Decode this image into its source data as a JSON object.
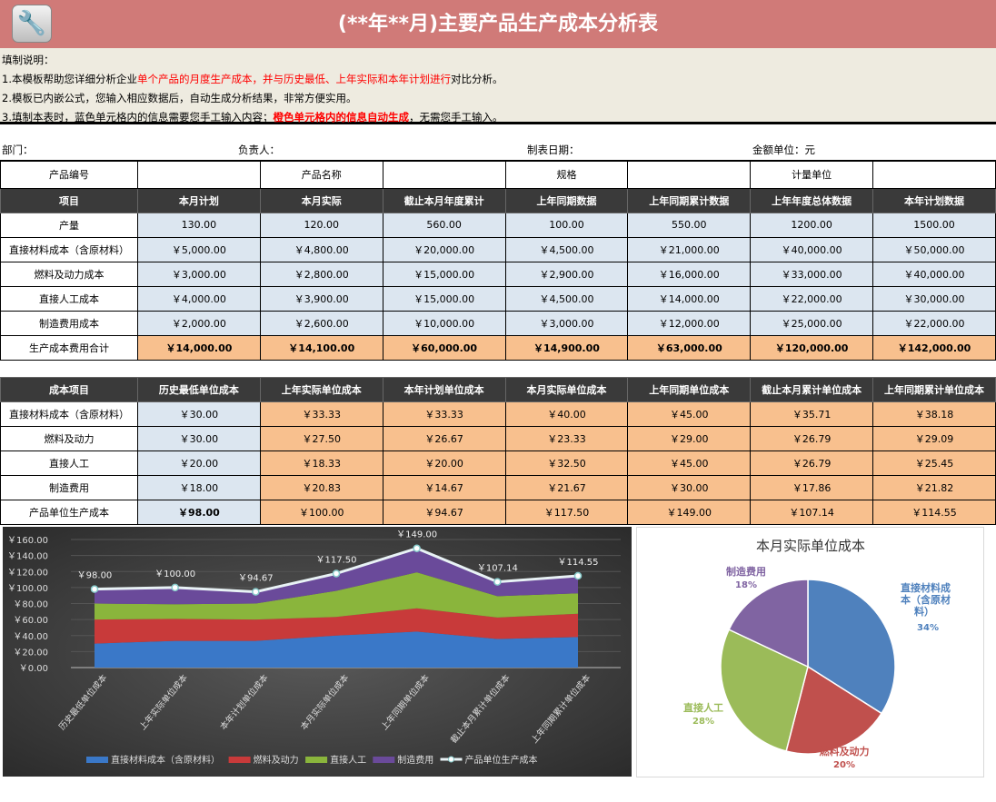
{
  "title": "(**年**月)主要产品生产成本分析表",
  "notes": {
    "heading": "填制说明：",
    "l1a": "1.本模板帮助您详细分析企业",
    "l1b": "单个产品的月度生产成本，并与历史最低、上年实际和本年计划进行",
    "l1c": "对比分析。",
    "l2": "2.模板已内嵌公式，您输入相应数据后，自动生成分析结果，非常方便实用。",
    "l3a": "3.填制本表时，蓝色单元格内的信息需要您手工输入内容；",
    "l3b": "橙色单元格内的信息自动生成",
    "l3c": "，无需您手工输入。"
  },
  "info": {
    "dept": "部门：",
    "owner": "负责人：",
    "date": "制表日期：",
    "unit": "金额单位：元"
  },
  "product_row": [
    "产品编号",
    "",
    "产品名称",
    "",
    "规格",
    "",
    "计量单位",
    ""
  ],
  "table1": {
    "headers": [
      "项目",
      "本月计划",
      "本月实际",
      "截止本月年度累计",
      "上年同期数据",
      "上年同期累计数据",
      "上年年度总体数据",
      "本年计划数据"
    ],
    "rows": [
      [
        "产量",
        "130.00",
        "120.00",
        "560.00",
        "100.00",
        "550.00",
        "1200.00",
        "1500.00"
      ],
      [
        "直接材料成本（含原材料）",
        "￥5,000.00",
        "￥4,800.00",
        "￥20,000.00",
        "￥4,500.00",
        "￥21,000.00",
        "￥40,000.00",
        "￥50,000.00"
      ],
      [
        "燃料及动力成本",
        "￥3,000.00",
        "￥2,800.00",
        "￥15,000.00",
        "￥2,900.00",
        "￥16,000.00",
        "￥33,000.00",
        "￥40,000.00"
      ],
      [
        "直接人工成本",
        "￥4,000.00",
        "￥3,900.00",
        "￥15,000.00",
        "￥4,500.00",
        "￥14,000.00",
        "￥22,000.00",
        "￥30,000.00"
      ],
      [
        "制造费用成本",
        "￥2,000.00",
        "￥2,600.00",
        "￥10,000.00",
        "￥3,000.00",
        "￥12,000.00",
        "￥25,000.00",
        "￥22,000.00"
      ],
      [
        "生产成本费用合计",
        "￥14,000.00",
        "￥14,100.00",
        "￥60,000.00",
        "￥14,900.00",
        "￥63,000.00",
        "￥120,000.00",
        "￥142,000.00"
      ]
    ]
  },
  "table2": {
    "headers": [
      "成本项目",
      "历史最低单位成本",
      "上年实际单位成本",
      "本年计划单位成本",
      "本月实际单位成本",
      "上年同期单位成本",
      "截止本月累计单位成本",
      "上年同期累计单位成本"
    ],
    "rows": [
      [
        "直接材料成本（含原材料）",
        "￥30.00",
        "￥33.33",
        "￥33.33",
        "￥40.00",
        "￥45.00",
        "￥35.71",
        "￥38.18"
      ],
      [
        "燃料及动力",
        "￥30.00",
        "￥27.50",
        "￥26.67",
        "￥23.33",
        "￥29.00",
        "￥26.79",
        "￥29.09"
      ],
      [
        "直接人工",
        "￥20.00",
        "￥18.33",
        "￥20.00",
        "￥32.50",
        "￥45.00",
        "￥26.79",
        "￥25.45"
      ],
      [
        "制造费用",
        "￥18.00",
        "￥20.83",
        "￥14.67",
        "￥21.67",
        "￥30.00",
        "￥17.86",
        "￥21.82"
      ],
      [
        "产品单位生产成本",
        "￥98.00",
        "￥100.00",
        "￥94.67",
        "￥117.50",
        "￥149.00",
        "￥107.14",
        "￥114.55"
      ]
    ]
  },
  "chart_data": [
    {
      "type": "area",
      "stacked": true,
      "categories": [
        "历史最低单位成本",
        "上年实际单位成本",
        "本年计划单位成本",
        "本月实际单位成本",
        "上年同期单位成本",
        "截止本月累计单位成本",
        "上年同期累计单位成本"
      ],
      "series": [
        {
          "name": "直接材料成本（含原材料）",
          "color": "#3a78c8",
          "values": [
            30,
            33.33,
            33.33,
            40,
            45,
            35.71,
            38.18
          ]
        },
        {
          "name": "燃料及动力",
          "color": "#c83a3a",
          "values": [
            30,
            27.5,
            26.67,
            23.33,
            29,
            26.79,
            29.09
          ]
        },
        {
          "name": "直接人工",
          "color": "#8ab53c",
          "values": [
            20,
            18.33,
            20,
            32.5,
            45,
            26.79,
            25.45
          ]
        },
        {
          "name": "制造费用",
          "color": "#6a4a9a",
          "values": [
            18,
            20.83,
            14.67,
            21.67,
            30,
            17.86,
            21.82
          ]
        }
      ],
      "line": {
        "name": "产品单位生产成本",
        "values": [
          98,
          100,
          94.67,
          117.5,
          149,
          107.14,
          114.55
        ],
        "labels": [
          "￥98.00",
          "￥100.00",
          "￥94.67",
          "￥117.50",
          "￥149.00",
          "￥107.14",
          "￥114.55"
        ]
      },
      "yticks": [
        "￥0.00",
        "￥20.00",
        "￥40.00",
        "￥60.00",
        "￥80.00",
        "￥100.00",
        "￥120.00",
        "￥140.00",
        "￥160.00"
      ],
      "ylim": [
        0,
        160
      ],
      "legend": "bottom"
    },
    {
      "type": "pie",
      "title": "本月实际单位成本",
      "slices": [
        {
          "label": "直接材料成本（含原材料）",
          "pct": "34%",
          "value": 34,
          "color": "#4f81bd"
        },
        {
          "label": "燃料及动力",
          "pct": "20%",
          "value": 20,
          "color": "#c0504d"
        },
        {
          "label": "直接人工",
          "pct": "28%",
          "value": 28,
          "color": "#9bbb59"
        },
        {
          "label": "制造费用",
          "pct": "18%",
          "value": 18,
          "color": "#8064a2"
        }
      ]
    }
  ]
}
